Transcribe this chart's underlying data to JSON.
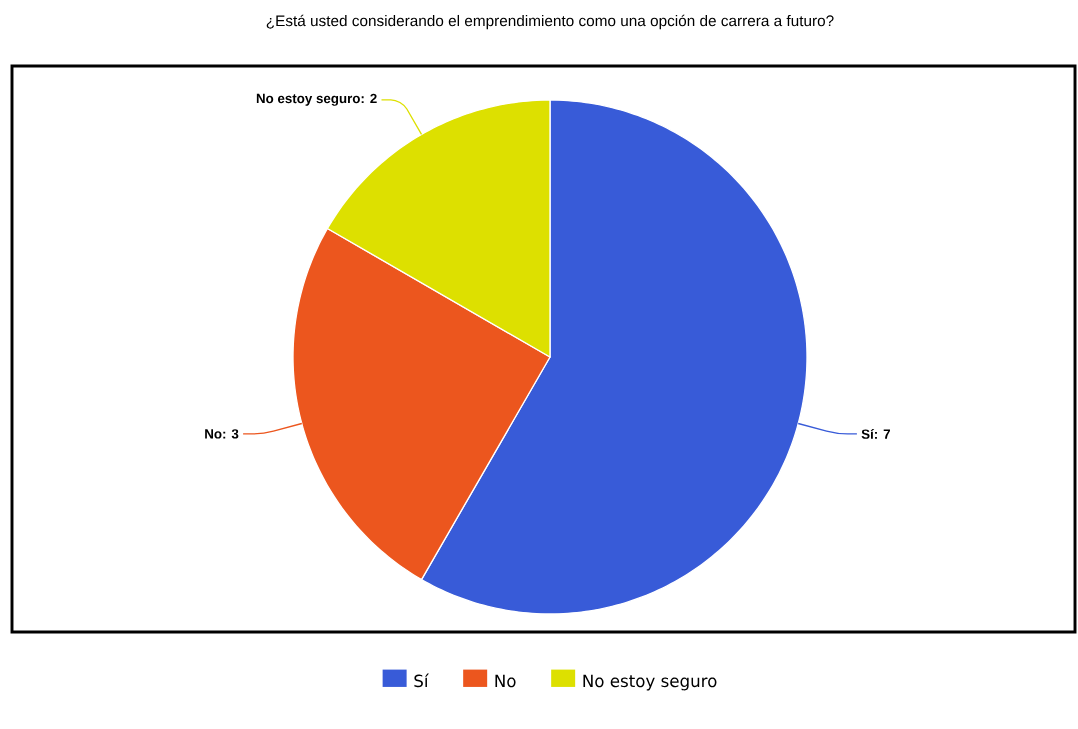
{
  "chart_data": {
    "type": "pie",
    "title": "¿Está usted considerando el emprendimiento como una opción de carrera a futuro?",
    "categories": [
      "Sí",
      "No",
      "No estoy seguro"
    ],
    "values": [
      7,
      3,
      2
    ],
    "colors": [
      "#385bd8",
      "#ec561e",
      "#dde000"
    ],
    "value_labels": [
      "Sí: 7",
      "No: 3",
      "No estoy seguro: 2"
    ],
    "legend": "bottom"
  }
}
